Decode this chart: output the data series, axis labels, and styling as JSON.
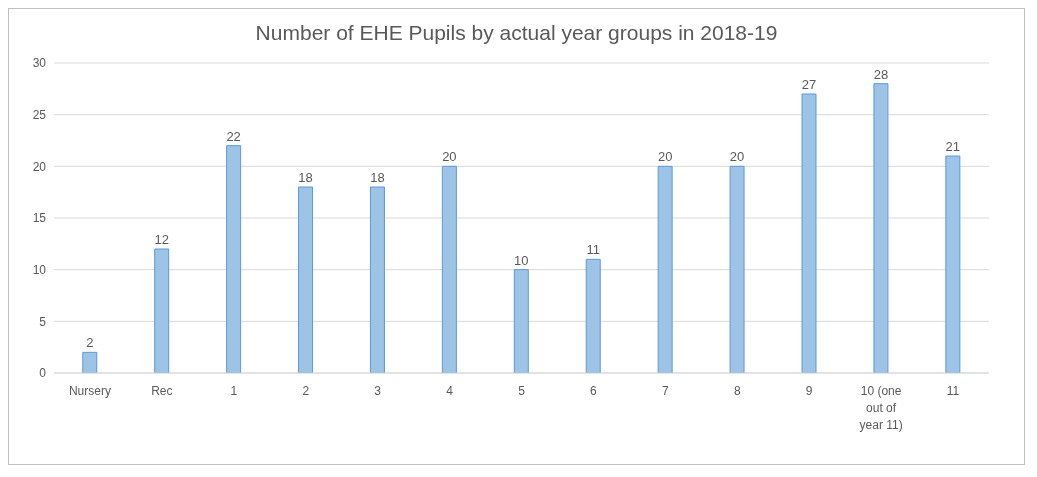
{
  "chart_data": {
    "type": "bar",
    "title": "Number of EHE Pupils by actual year groups in 2018-19",
    "categories": [
      "Nursery",
      "Rec",
      "1",
      "2",
      "3",
      "4",
      "5",
      "6",
      "7",
      "8",
      "9",
      "10 (one out of year 11)",
      "11"
    ],
    "values": [
      2,
      12,
      22,
      18,
      18,
      20,
      10,
      11,
      20,
      20,
      27,
      28,
      21
    ],
    "color": "#9dc3e6",
    "ylim": [
      0,
      30
    ],
    "yticks": [
      0,
      5,
      10,
      15,
      20,
      25,
      30
    ],
    "grid": "y",
    "data_labels": true
  }
}
